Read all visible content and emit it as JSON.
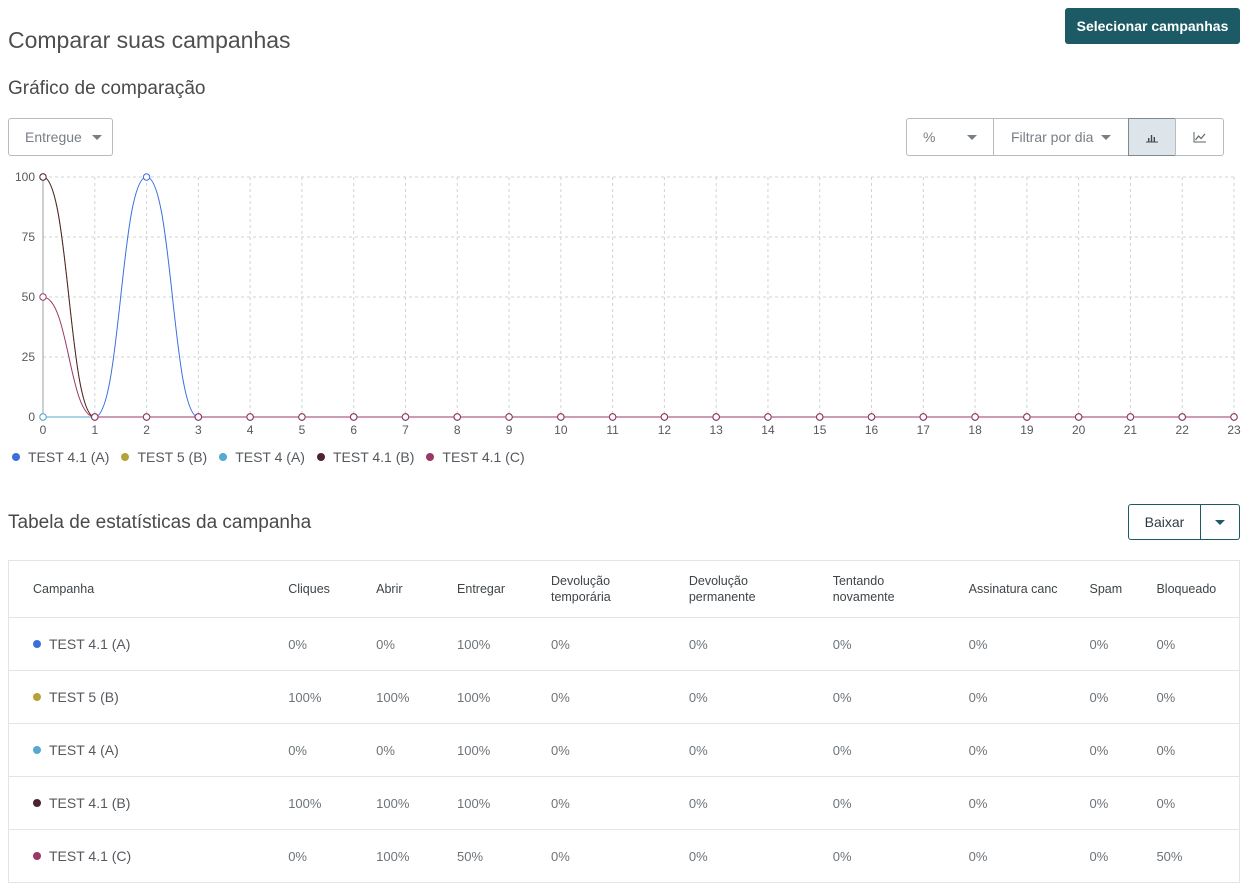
{
  "header": {
    "title": "Comparar suas campanhas",
    "select_button": "Selecionar campanhas"
  },
  "chart_section": {
    "title": "Gráfico de comparação",
    "metric_dropdown": "Entregue",
    "unit_dropdown": "%",
    "filter_dropdown": "Filtrar por dia",
    "view_bar_icon": "bar-chart-icon",
    "view_line_icon": "line-chart-icon"
  },
  "chart_data": {
    "type": "line",
    "x": [
      0,
      1,
      2,
      3,
      4,
      5,
      6,
      7,
      8,
      9,
      10,
      11,
      12,
      13,
      14,
      15,
      16,
      17,
      18,
      19,
      20,
      21,
      22,
      23
    ],
    "ylim": [
      0,
      100
    ],
    "yticks": [
      0,
      25,
      50,
      75,
      100
    ],
    "grid": true,
    "legend_position": "bottom-left",
    "series": [
      {
        "name": "TEST 4.1 (A)",
        "color": "#3b6fdc",
        "values": [
          0,
          0,
          100,
          0,
          0,
          0,
          0,
          0,
          0,
          0,
          0,
          0,
          0,
          0,
          0,
          0,
          0,
          0,
          0,
          0,
          0,
          0,
          0,
          0
        ]
      },
      {
        "name": "TEST 5 (B)",
        "color": "#b5a23a",
        "values": [
          100,
          0,
          0,
          0,
          0,
          0,
          0,
          0,
          0,
          0,
          0,
          0,
          0,
          0,
          0,
          0,
          0,
          0,
          0,
          0,
          0,
          0,
          0,
          0
        ]
      },
      {
        "name": "TEST 4 (A)",
        "color": "#56a9cf",
        "values": [
          0,
          0,
          0,
          0,
          0,
          0,
          0,
          0,
          0,
          0,
          0,
          0,
          0,
          0,
          0,
          0,
          0,
          0,
          0,
          0,
          0,
          0,
          0,
          0
        ]
      },
      {
        "name": "TEST 4.1 (B)",
        "color": "#4b2430",
        "values": [
          100,
          0,
          0,
          0,
          0,
          0,
          0,
          0,
          0,
          0,
          0,
          0,
          0,
          0,
          0,
          0,
          0,
          0,
          0,
          0,
          0,
          0,
          0,
          0
        ]
      },
      {
        "name": "TEST 4.1 (C)",
        "color": "#9b3766",
        "values": [
          50,
          0,
          0,
          0,
          0,
          0,
          0,
          0,
          0,
          0,
          0,
          0,
          0,
          0,
          0,
          0,
          0,
          0,
          0,
          0,
          0,
          0,
          0,
          0
        ]
      }
    ]
  },
  "table_section": {
    "title": "Tabela de estatísticas da campanha",
    "download_label": "Baixar",
    "columns": [
      "Campanha",
      "Cliques",
      "Abrir",
      "Entregar",
      "Devolução temporária",
      "Devolução permanente",
      "Tentando novamente",
      "Assinatura canc",
      "Spam",
      "Bloqueado"
    ],
    "rows": [
      {
        "name": "TEST 4.1 (A)",
        "color": "#3b6fdc",
        "cells": [
          "0%",
          "0%",
          "100%",
          "0%",
          "0%",
          "0%",
          "0%",
          "0%",
          "0%"
        ]
      },
      {
        "name": "TEST 5 (B)",
        "color": "#b5a23a",
        "cells": [
          "100%",
          "100%",
          "100%",
          "0%",
          "0%",
          "0%",
          "0%",
          "0%",
          "0%"
        ]
      },
      {
        "name": "TEST 4 (A)",
        "color": "#56a9cf",
        "cells": [
          "0%",
          "0%",
          "100%",
          "0%",
          "0%",
          "0%",
          "0%",
          "0%",
          "0%"
        ]
      },
      {
        "name": "TEST 4.1 (B)",
        "color": "#4b2430",
        "cells": [
          "100%",
          "100%",
          "100%",
          "0%",
          "0%",
          "0%",
          "0%",
          "0%",
          "0%"
        ]
      },
      {
        "name": "TEST 4.1 (C)",
        "color": "#9b3766",
        "cells": [
          "0%",
          "100%",
          "50%",
          "0%",
          "0%",
          "0%",
          "0%",
          "0%",
          "50%"
        ]
      }
    ]
  }
}
